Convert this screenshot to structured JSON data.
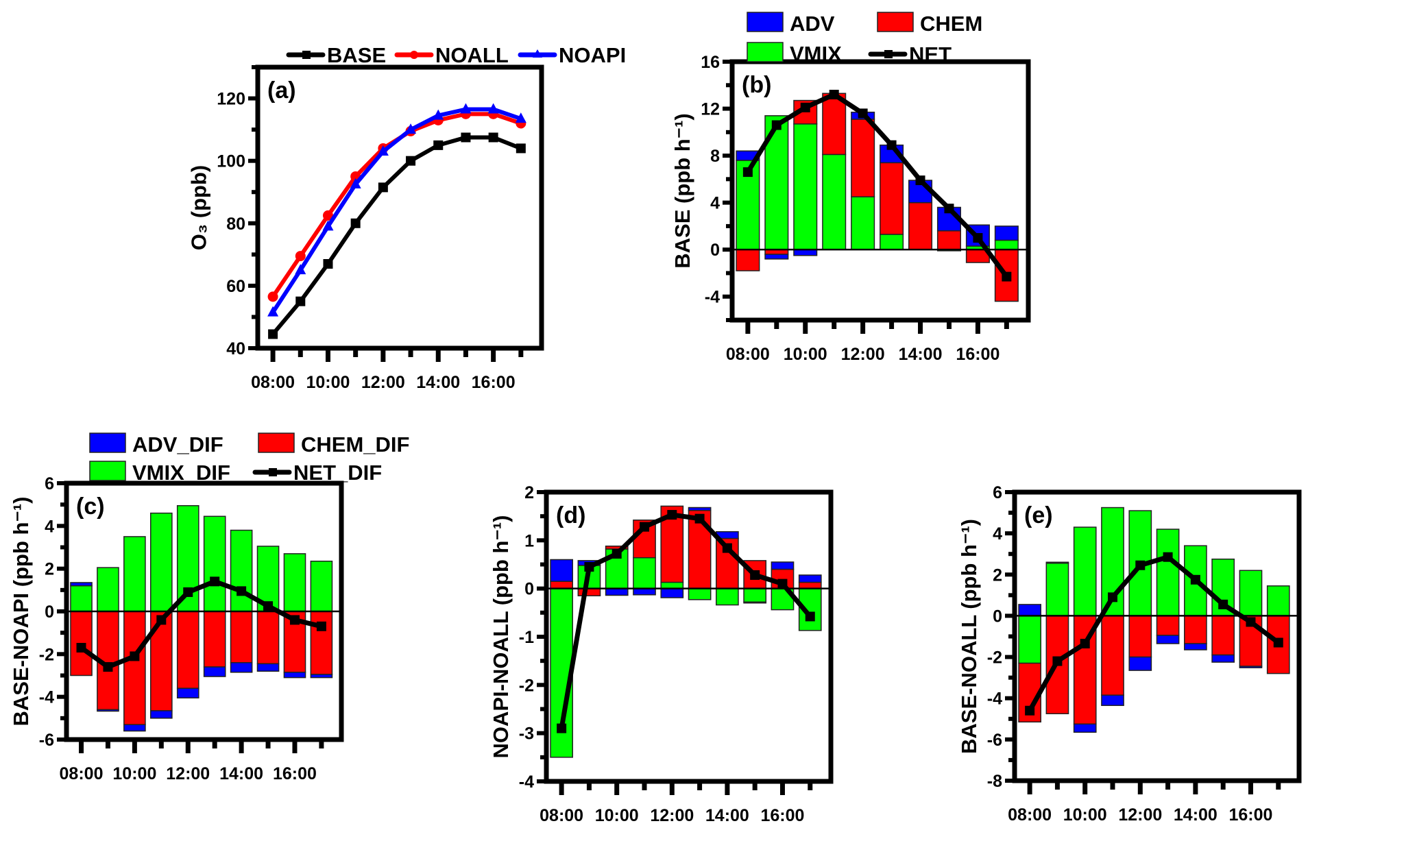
{
  "colors": {
    "ADV": "#0000ff",
    "CHEM": "#ff0000",
    "VMIX": "#00ff00",
    "NET": "#000000",
    "BASE": "#000000",
    "NOALL": "#ff0000",
    "NOAPI": "#0000ff"
  },
  "chart_data": [
    {
      "panel": "(a)",
      "type": "line",
      "x": [
        "08:00",
        "09:00",
        "10:00",
        "11:00",
        "12:00",
        "13:00",
        "14:00",
        "15:00",
        "16:00",
        "17:00"
      ],
      "xticklabels": [
        "08:00",
        "10:00",
        "12:00",
        "14:00",
        "16:00"
      ],
      "ylabel": "O₃ (ppb)",
      "ylim": [
        40,
        130
      ],
      "yticks": [
        40,
        60,
        80,
        100,
        120
      ],
      "legend": "top",
      "series": [
        {
          "name": "BASE",
          "marker": "square",
          "values": [
            44.5,
            55,
            67,
            80,
            91.5,
            100,
            105,
            107.5,
            107.5,
            104
          ]
        },
        {
          "name": "NOALL",
          "marker": "circle",
          "values": [
            56.5,
            69.5,
            82.5,
            95,
            104,
            109.5,
            113,
            115,
            115,
            112
          ]
        },
        {
          "name": "NOAPI",
          "marker": "triangle",
          "values": [
            51.5,
            65,
            79,
            92.5,
            103,
            110,
            114.5,
            116.5,
            116.5,
            113.5
          ]
        }
      ]
    },
    {
      "panel": "(b)",
      "type": "bar",
      "stacked": true,
      "x": [
        "08:00",
        "09:00",
        "10:00",
        "11:00",
        "12:00",
        "13:00",
        "14:00",
        "15:00",
        "16:00",
        "17:00"
      ],
      "xticklabels": [
        "08:00",
        "10:00",
        "12:00",
        "14:00",
        "16:00"
      ],
      "ylabel": "BASE (ppb h⁻¹)",
      "ylim": [
        -6,
        16
      ],
      "yticks": [
        -4,
        0,
        4,
        8,
        12,
        16
      ],
      "legend": "top",
      "series": [
        {
          "name": "ADV",
          "values": [
            0.8,
            -0.4,
            -0.5,
            0,
            0.6,
            1.5,
            1.9,
            2.0,
            1.8,
            1.2
          ]
        },
        {
          "name": "CHEM",
          "values": [
            -1.8,
            -0.4,
            2.0,
            5.2,
            6.6,
            6.1,
            4.0,
            1.6,
            -1.1,
            -4.4
          ]
        },
        {
          "name": "VMIX",
          "values": [
            7.6,
            11.4,
            10.7,
            8.1,
            4.5,
            1.3,
            0,
            -0.1,
            0.3,
            0.8
          ]
        },
        {
          "name": "NET",
          "type": "line",
          "values": [
            6.6,
            10.6,
            12.1,
            13.2,
            11.6,
            8.9,
            5.9,
            3.5,
            1.0,
            -2.3
          ]
        }
      ]
    },
    {
      "panel": "(c)",
      "type": "bar",
      "stacked": true,
      "x": [
        "08:00",
        "09:00",
        "10:00",
        "11:00",
        "12:00",
        "13:00",
        "14:00",
        "15:00",
        "16:00",
        "17:00"
      ],
      "xticklabels": [
        "08:00",
        "10:00",
        "12:00",
        "14:00",
        "16:00"
      ],
      "ylabel": "BASE-NOAPI (ppb h⁻¹)",
      "ylim": [
        -6,
        6
      ],
      "yticks": [
        -6,
        -4,
        -2,
        0,
        2,
        4,
        6
      ],
      "legend": "top",
      "series": [
        {
          "name": "ADV_DIF",
          "values": [
            0.15,
            -0.07,
            -0.3,
            -0.35,
            -0.45,
            -0.45,
            -0.45,
            -0.35,
            -0.25,
            -0.15
          ]
        },
        {
          "name": "CHEM_DIF",
          "values": [
            -3.0,
            -4.6,
            -5.3,
            -4.65,
            -3.6,
            -2.6,
            -2.4,
            -2.45,
            -2.85,
            -2.95
          ]
        },
        {
          "name": "VMIX_DIF",
          "values": [
            1.2,
            2.05,
            3.5,
            4.6,
            4.95,
            4.45,
            3.8,
            3.05,
            2.7,
            2.35
          ]
        },
        {
          "name": "NET_DIF",
          "type": "line",
          "values": [
            -1.7,
            -2.6,
            -2.1,
            -0.4,
            0.9,
            1.4,
            0.95,
            0.25,
            -0.4,
            -0.7
          ]
        }
      ]
    },
    {
      "panel": "(d)",
      "type": "bar",
      "stacked": true,
      "x": [
        "08:00",
        "09:00",
        "10:00",
        "11:00",
        "12:00",
        "13:00",
        "14:00",
        "15:00",
        "16:00",
        "17:00"
      ],
      "xticklabels": [
        "08:00",
        "10:00",
        "12:00",
        "14:00",
        "16:00"
      ],
      "ylabel": "NOAPI-NOALL (ppb h⁻¹)",
      "ylim": [
        -4,
        2
      ],
      "yticks": [
        -4,
        -3,
        -2,
        -1,
        0,
        1,
        2
      ],
      "series": [
        {
          "name": "ADV_DIF",
          "values": [
            0.45,
            0.1,
            -0.14,
            -0.13,
            -0.19,
            0.06,
            0.14,
            -0.02,
            0.15,
            0.15
          ]
        },
        {
          "name": "CHEM_DIF",
          "values": [
            0.15,
            -0.15,
            0.06,
            0.78,
            1.58,
            1.62,
            1.04,
            0.58,
            0.4,
            0.13
          ]
        },
        {
          "name": "VMIX_DIF",
          "values": [
            -3.5,
            0.48,
            0.82,
            0.64,
            0.13,
            -0.23,
            -0.34,
            -0.28,
            -0.44,
            -0.87
          ]
        },
        {
          "name": "NET_DIF",
          "type": "line",
          "values": [
            -2.9,
            0.45,
            0.72,
            1.28,
            1.53,
            1.45,
            0.84,
            0.28,
            0.1,
            -0.58
          ]
        }
      ]
    },
    {
      "panel": "(e)",
      "type": "bar",
      "stacked": true,
      "x": [
        "08:00",
        "09:00",
        "10:00",
        "11:00",
        "12:00",
        "13:00",
        "14:00",
        "15:00",
        "16:00",
        "17:00"
      ],
      "xticklabels": [
        "08:00",
        "10:00",
        "12:00",
        "14:00",
        "16:00"
      ],
      "ylabel": "BASE-NOALL (ppb h⁻¹)",
      "ylim": [
        -8,
        6
      ],
      "yticks": [
        -8,
        -6,
        -4,
        -2,
        0,
        2,
        4,
        6
      ],
      "series": [
        {
          "name": "ADV_DIF",
          "values": [
            0.55,
            0.05,
            -0.4,
            -0.5,
            -0.65,
            -0.4,
            -0.3,
            -0.35,
            -0.07,
            0
          ]
        },
        {
          "name": "CHEM_DIF",
          "values": [
            -2.85,
            -4.75,
            -5.25,
            -3.85,
            -2.0,
            -0.95,
            -1.35,
            -1.9,
            -2.45,
            -2.8
          ]
        },
        {
          "name": "VMIX_DIF",
          "values": [
            -2.3,
            2.55,
            4.3,
            5.25,
            5.1,
            4.2,
            3.4,
            2.75,
            2.2,
            1.45
          ]
        },
        {
          "name": "NET_DIF",
          "type": "line",
          "values": [
            -4.6,
            -2.2,
            -1.35,
            0.9,
            2.45,
            2.85,
            1.75,
            0.55,
            -0.3,
            -1.3
          ]
        }
      ]
    }
  ]
}
